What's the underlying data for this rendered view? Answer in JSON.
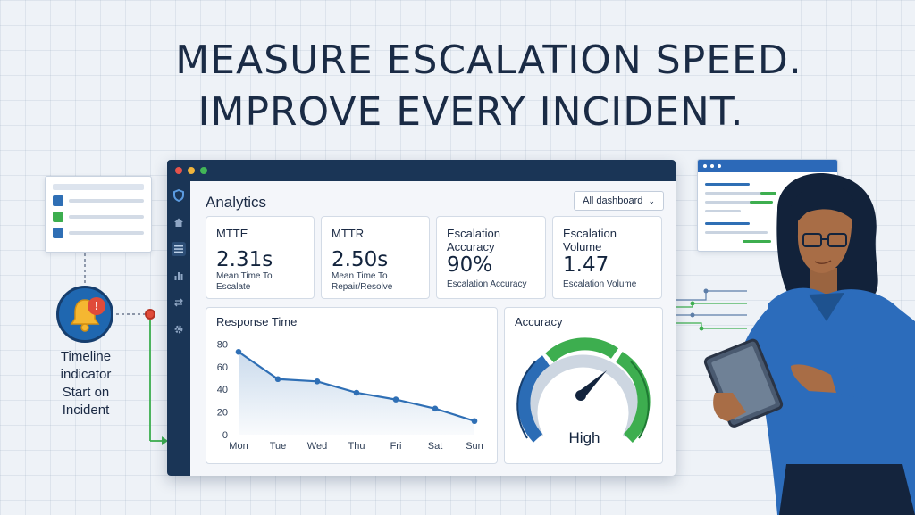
{
  "headline": {
    "line1": "MEASURE ESCALATION SPEED.",
    "line2": "IMPROVE EVERY INCIDENT."
  },
  "timeline": {
    "label_lines": [
      "Timeline",
      "indicator",
      "Start on",
      "Incident"
    ],
    "alert_glyph": "!",
    "icon": "bell-icon"
  },
  "dashboard": {
    "title": "Analytics",
    "filter": {
      "selected": "All dashboard",
      "icon": "chevron-down-icon"
    },
    "sidebar_icons": [
      "shield-logo-icon",
      "home-icon",
      "list-icon",
      "bar-chart-icon",
      "swap-icon",
      "gear-icon"
    ],
    "kpis": [
      {
        "label": "MTTE",
        "value": "2.31s",
        "sub": "Mean Time To Escalate"
      },
      {
        "label": "MTTR",
        "value": "2.50s",
        "sub": "Mean Time To Repair/Resolve"
      },
      {
        "label": "Escalation Accuracy",
        "value": "90%",
        "sub": "Escalation Accuracy"
      },
      {
        "label": "Escalation Volume",
        "value": "1.47",
        "sub": "Escalation Volume"
      }
    ],
    "response_time": {
      "title": "Response Time"
    },
    "accuracy": {
      "title": "Accuracy",
      "label": "High"
    },
    "colors": {
      "frame": "#1a3556",
      "line": "#2f6fb5",
      "gauge_green": "#3dae4f",
      "gauge_blue": "#2b6cb5",
      "gauge_gray": "#cdd6e1"
    }
  },
  "chart_data": {
    "type": "line",
    "title": "Response Time",
    "categories": [
      "Mon",
      "Tue",
      "Wed",
      "Thu",
      "Fri",
      "Sat",
      "Sun"
    ],
    "values": [
      73,
      49,
      47,
      37,
      31,
      23,
      12
    ],
    "yticks": [
      0,
      20,
      40,
      60,
      80
    ],
    "ylim": [
      0,
      85
    ],
    "grid": false,
    "area_fill": true
  }
}
